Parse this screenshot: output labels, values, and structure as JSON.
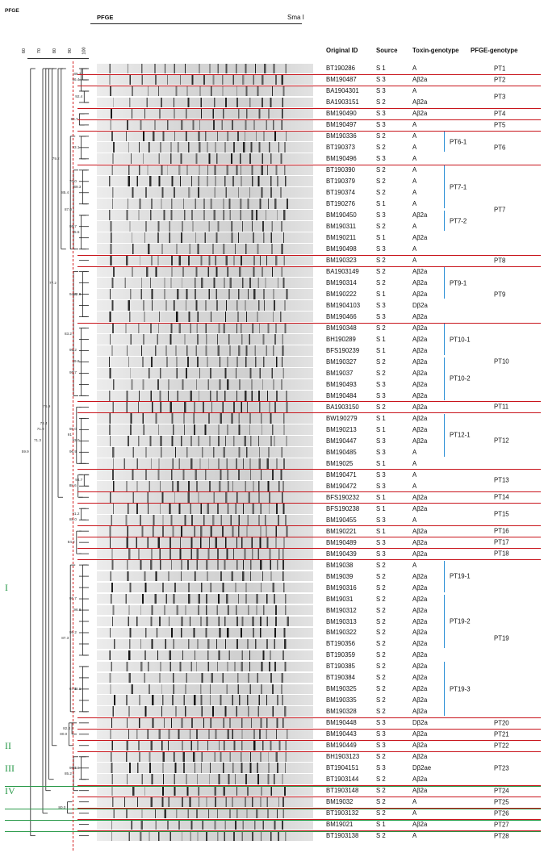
{
  "header": {
    "left_label": "PFGE",
    "gel_label": "PFGE",
    "enzyme": "Sma I",
    "columns": [
      "Original ID",
      "Source",
      "Toxin-genotype",
      "PFGE-genotype"
    ]
  },
  "scale_ticks": [
    "60",
    "70",
    "80",
    "90",
    "100"
  ],
  "clusters": [
    {
      "label": "I",
      "row": 46
    },
    {
      "label": "II",
      "row": 60
    },
    {
      "label": "III",
      "row": 62
    },
    {
      "label": "IV",
      "row": 64
    }
  ],
  "rows": [
    {
      "id": "BT190286",
      "source": "S 1",
      "toxin": "A"
    },
    {
      "id": "BM190487",
      "source": "S 3",
      "toxin": "Aβ2a"
    },
    {
      "id": "BA1904301",
      "source": "S 3",
      "toxin": "A"
    },
    {
      "id": "BA1903151",
      "source": "S 2",
      "toxin": "Aβ2a"
    },
    {
      "id": "BM190490",
      "source": "S 3",
      "toxin": "Aβ2a"
    },
    {
      "id": "BM190497",
      "source": "S 3",
      "toxin": "A"
    },
    {
      "id": "BM190336",
      "source": "S 2",
      "toxin": "A"
    },
    {
      "id": "BT190373",
      "source": "S 2",
      "toxin": "A"
    },
    {
      "id": "BM190496",
      "source": "S 3",
      "toxin": "A"
    },
    {
      "id": "BT190390",
      "source": "S 2",
      "toxin": "A"
    },
    {
      "id": "BT190379",
      "source": "S 2",
      "toxin": "A"
    },
    {
      "id": "BT190374",
      "source": "S 2",
      "toxin": "A"
    },
    {
      "id": "BT190276",
      "source": "S 1",
      "toxin": "A"
    },
    {
      "id": "BM190450",
      "source": "S 3",
      "toxin": "Aβ2a"
    },
    {
      "id": "BM190311",
      "source": "S 2",
      "toxin": "A"
    },
    {
      "id": "BM190211",
      "source": "S 1",
      "toxin": "Aβ2a"
    },
    {
      "id": "BM190498",
      "source": "S 3",
      "toxin": "A"
    },
    {
      "id": "BM190323",
      "source": "S 2",
      "toxin": "A"
    },
    {
      "id": "BA1903149",
      "source": "S 2",
      "toxin": "Aβ2a"
    },
    {
      "id": "BM190314",
      "source": "S 2",
      "toxin": "Aβ2a"
    },
    {
      "id": "BM190222",
      "source": "S 1",
      "toxin": "Aβ2a"
    },
    {
      "id": "BM1904103",
      "source": "S 3",
      "toxin": "Dβ2a"
    },
    {
      "id": "BM190466",
      "source": "S 3",
      "toxin": "Aβ2a"
    },
    {
      "id": "BM190348",
      "source": "S 2",
      "toxin": "Aβ2a"
    },
    {
      "id": "BH190289",
      "source": "S 1",
      "toxin": "Aβ2a"
    },
    {
      "id": "BFS190239",
      "source": "S 1",
      "toxin": "Aβ2a"
    },
    {
      "id": "BM190327",
      "source": "S 2",
      "toxin": "Aβ2a"
    },
    {
      "id": "BM19037",
      "source": "S 2",
      "toxin": "Aβ2a"
    },
    {
      "id": "BM190493",
      "source": "S 3",
      "toxin": "Aβ2a"
    },
    {
      "id": "BM190484",
      "source": "S 3",
      "toxin": "Aβ2a"
    },
    {
      "id": "BA1903150",
      "source": "S 2",
      "toxin": "Aβ2a"
    },
    {
      "id": "BW190279",
      "source": "S 1",
      "toxin": "Aβ2a"
    },
    {
      "id": "BM190213",
      "source": "S 1",
      "toxin": "Aβ2a"
    },
    {
      "id": "BM190447",
      "source": "S 3",
      "toxin": "Aβ2a"
    },
    {
      "id": "BM190485",
      "source": "S 3",
      "toxin": "A"
    },
    {
      "id": "BM19025",
      "source": "S 1",
      "toxin": "A"
    },
    {
      "id": "BM190471",
      "source": "S 3",
      "toxin": "A"
    },
    {
      "id": "BM190472",
      "source": "S 3",
      "toxin": "A"
    },
    {
      "id": "BFS190232",
      "source": "S 1",
      "toxin": "Aβ2a"
    },
    {
      "id": "BFS190238",
      "source": "S 1",
      "toxin": "Aβ2a"
    },
    {
      "id": "BM190455",
      "source": "S 3",
      "toxin": "A"
    },
    {
      "id": "BM190221",
      "source": "S 1",
      "toxin": "Aβ2a"
    },
    {
      "id": "BM190489",
      "source": "S 3",
      "toxin": "Aβ2a"
    },
    {
      "id": "BM190439",
      "source": "S 3",
      "toxin": "Aβ2a"
    },
    {
      "id": "BM19038",
      "source": "S 2",
      "toxin": "A"
    },
    {
      "id": "BM19039",
      "source": "S 2",
      "toxin": "Aβ2a"
    },
    {
      "id": "BM190316",
      "source": "S 2",
      "toxin": "Aβ2a"
    },
    {
      "id": "BM19031",
      "source": "S 2",
      "toxin": "Aβ2a"
    },
    {
      "id": "BM190312",
      "source": "S 2",
      "toxin": "Aβ2a"
    },
    {
      "id": "BM190313",
      "source": "S 2",
      "toxin": "Aβ2a"
    },
    {
      "id": "BM190322",
      "source": "S 2",
      "toxin": "Aβ2a"
    },
    {
      "id": "BT190356",
      "source": "S 2",
      "toxin": "Aβ2a"
    },
    {
      "id": "BT190359",
      "source": "S 2",
      "toxin": "Aβ2a"
    },
    {
      "id": "BT190385",
      "source": "S 2",
      "toxin": "Aβ2a"
    },
    {
      "id": "BT190384",
      "source": "S 2",
      "toxin": "Aβ2a"
    },
    {
      "id": "BM190325",
      "source": "S 2",
      "toxin": "Aβ2a"
    },
    {
      "id": "BM190335",
      "source": "S 2",
      "toxin": "Aβ2a"
    },
    {
      "id": "BM190328",
      "source": "S 2",
      "toxin": "Aβ2a"
    },
    {
      "id": "BM190448",
      "source": "S 3",
      "toxin": "Dβ2a"
    },
    {
      "id": "BM190443",
      "source": "S 3",
      "toxin": "Aβ2a"
    },
    {
      "id": "BM190449",
      "source": "S 3",
      "toxin": "Aβ2a"
    },
    {
      "id": "BH1903123",
      "source": "S 2",
      "toxin": "Aβ2a"
    },
    {
      "id": "BT1904151",
      "source": "S 3",
      "toxin": "Dβ2ae"
    },
    {
      "id": "BT1903144",
      "source": "S 2",
      "toxin": "Aβ2a"
    },
    {
      "id": "BT1903148",
      "source": "S 2",
      "toxin": "Aβ2a"
    },
    {
      "id": "BM19032",
      "source": "S 2",
      "toxin": "A"
    },
    {
      "id": "BT1903132",
      "source": "S 2",
      "toxin": "A"
    },
    {
      "id": "BM19021",
      "source": "S 1",
      "toxin": "Aβ2a"
    },
    {
      "id": "BT1903138",
      "source": "S 2",
      "toxin": "A"
    }
  ],
  "pfge_types": [
    {
      "label": "PT1",
      "start": 0,
      "end": 0
    },
    {
      "label": "PT2",
      "start": 1,
      "end": 1
    },
    {
      "label": "PT3",
      "start": 2,
      "end": 3
    },
    {
      "label": "PT4",
      "start": 4,
      "end": 4
    },
    {
      "label": "PT5",
      "start": 5,
      "end": 5
    },
    {
      "label": "PT6",
      "start": 6,
      "end": 8
    },
    {
      "label": "PT7",
      "start": 9,
      "end": 16
    },
    {
      "label": "PT8",
      "start": 17,
      "end": 17
    },
    {
      "label": "PT9",
      "start": 18,
      "end": 22
    },
    {
      "label": "PT10",
      "start": 23,
      "end": 29
    },
    {
      "label": "PT11",
      "start": 30,
      "end": 30
    },
    {
      "label": "PT12",
      "start": 31,
      "end": 35
    },
    {
      "label": "PT13",
      "start": 36,
      "end": 37
    },
    {
      "label": "PT14",
      "start": 38,
      "end": 38
    },
    {
      "label": "PT15",
      "start": 39,
      "end": 40
    },
    {
      "label": "PT16",
      "start": 41,
      "end": 41
    },
    {
      "label": "PT17",
      "start": 42,
      "end": 42
    },
    {
      "label": "PT18",
      "start": 43,
      "end": 43
    },
    {
      "label": "PT19",
      "start": 44,
      "end": 57
    },
    {
      "label": "PT20",
      "start": 58,
      "end": 58
    },
    {
      "label": "PT21",
      "start": 59,
      "end": 59
    },
    {
      "label": "PT22",
      "start": 60,
      "end": 60
    },
    {
      "label": "PT23",
      "start": 61,
      "end": 63
    },
    {
      "label": "PT24",
      "start": 64,
      "end": 64
    },
    {
      "label": "PT25",
      "start": 65,
      "end": 65
    },
    {
      "label": "PT26",
      "start": 66,
      "end": 66
    },
    {
      "label": "PT27",
      "start": 67,
      "end": 67
    },
    {
      "label": "PT28",
      "start": 68,
      "end": 68
    }
  ],
  "subtypes": [
    {
      "label": "PT6-1",
      "start": 6,
      "end": 7
    },
    {
      "label": "PT7-1",
      "start": 9,
      "end": 12
    },
    {
      "label": "PT7-2",
      "start": 13,
      "end": 14
    },
    {
      "label": "PT9-1",
      "start": 18,
      "end": 20
    },
    {
      "label": "PT10-1",
      "start": 23,
      "end": 25
    },
    {
      "label": "PT10-2",
      "start": 26,
      "end": 29
    },
    {
      "label": "PT12-1",
      "start": 31,
      "end": 34
    },
    {
      "label": "PT19-1",
      "start": 44,
      "end": 46
    },
    {
      "label": "PT19-2",
      "start": 47,
      "end": 51
    },
    {
      "label": "PT19-3",
      "start": 53,
      "end": 57
    }
  ],
  "separators_after_row": [
    0,
    1,
    3,
    4,
    5,
    8,
    16,
    17,
    22,
    29,
    30,
    35,
    37,
    38,
    40,
    41,
    42,
    43,
    57,
    58,
    59,
    60,
    63,
    64,
    65,
    66,
    67
  ],
  "green_separators_after_row": [
    63,
    65,
    66,
    67
  ],
  "node_values": [
    "89.7",
    "86.4",
    "92.4",
    "70.0",
    "86.7",
    "93.1",
    "89.3",
    "95.7",
    "94.4",
    "87.0",
    "95.5",
    "95.2",
    "85.4",
    "95.7",
    "92.8",
    "96.8",
    "79.2",
    "96.0",
    "94.7",
    "96.9",
    "83.2",
    "89.8",
    "95.7",
    "77.2",
    "96.1",
    "91",
    "95.2",
    "93.0",
    "94.7",
    "67.1",
    "88.6",
    "91.2",
    "88.0",
    "84.2",
    "75.9",
    "96.8",
    "96.6",
    "96.1",
    "73.4",
    "87.3",
    "82.4",
    "80.0",
    "71.9",
    "94.7",
    "91.8",
    "71.3",
    "85.2",
    "59.9",
    "80.0"
  ],
  "style": {
    "separator_color": "#c8141b",
    "cluster_color": "#2a9a4a",
    "subtype_bracket_color": "#2b8fd6",
    "cutoff_line_color": "#d42020"
  }
}
